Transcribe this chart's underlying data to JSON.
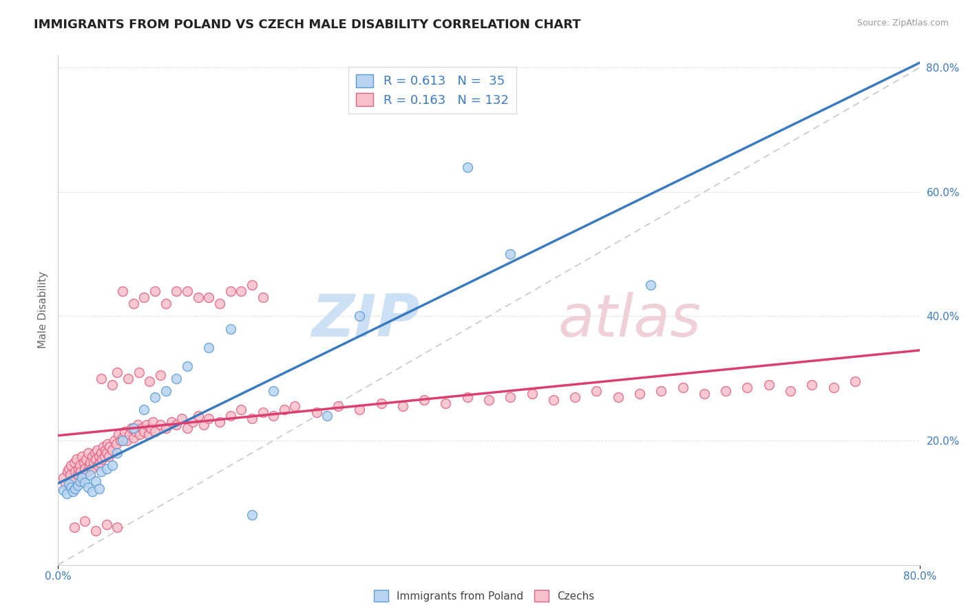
{
  "title": "IMMIGRANTS FROM POLAND VS CZECH MALE DISABILITY CORRELATION CHART",
  "source": "Source: ZipAtlas.com",
  "ylabel": "Male Disability",
  "xlim": [
    0.0,
    0.8
  ],
  "ylim": [
    0.0,
    0.82
  ],
  "poland_R": 0.613,
  "poland_N": 35,
  "czech_R": 0.163,
  "czech_N": 132,
  "poland_color": "#b8d4f0",
  "poland_edge_color": "#5b9bd5",
  "czech_color": "#f8c0cc",
  "czech_edge_color": "#e06080",
  "ref_line_color": "#c8c8c8",
  "poland_line_color": "#3a7abf",
  "czech_line_color": "#d94070",
  "legend_text_color": "#3a7abf",
  "watermark_color": "#ddeeff",
  "poland_scatter_x": [
    0.005,
    0.008,
    0.01,
    0.012,
    0.014,
    0.016,
    0.018,
    0.02,
    0.022,
    0.025,
    0.028,
    0.03,
    0.032,
    0.035,
    0.038,
    0.04,
    0.045,
    0.05,
    0.055,
    0.06,
    0.07,
    0.08,
    0.09,
    0.1,
    0.11,
    0.12,
    0.14,
    0.16,
    0.18,
    0.2,
    0.25,
    0.28,
    0.38,
    0.42,
    0.55
  ],
  "poland_scatter_y": [
    0.12,
    0.115,
    0.13,
    0.125,
    0.118,
    0.122,
    0.128,
    0.135,
    0.14,
    0.132,
    0.125,
    0.145,
    0.118,
    0.135,
    0.122,
    0.15,
    0.155,
    0.16,
    0.18,
    0.2,
    0.22,
    0.25,
    0.27,
    0.28,
    0.3,
    0.32,
    0.35,
    0.38,
    0.08,
    0.28,
    0.24,
    0.4,
    0.64,
    0.5,
    0.45
  ],
  "czech_scatter_x": [
    0.005,
    0.007,
    0.009,
    0.01,
    0.011,
    0.012,
    0.013,
    0.015,
    0.016,
    0.017,
    0.018,
    0.019,
    0.02,
    0.021,
    0.022,
    0.023,
    0.024,
    0.025,
    0.026,
    0.027,
    0.028,
    0.029,
    0.03,
    0.031,
    0.032,
    0.033,
    0.034,
    0.035,
    0.036,
    0.037,
    0.038,
    0.039,
    0.04,
    0.041,
    0.042,
    0.043,
    0.044,
    0.045,
    0.046,
    0.047,
    0.048,
    0.05,
    0.052,
    0.054,
    0.056,
    0.058,
    0.06,
    0.062,
    0.064,
    0.066,
    0.068,
    0.07,
    0.072,
    0.074,
    0.076,
    0.078,
    0.08,
    0.082,
    0.084,
    0.086,
    0.088,
    0.09,
    0.095,
    0.1,
    0.105,
    0.11,
    0.115,
    0.12,
    0.125,
    0.13,
    0.135,
    0.14,
    0.15,
    0.16,
    0.17,
    0.18,
    0.19,
    0.2,
    0.21,
    0.22,
    0.24,
    0.26,
    0.28,
    0.3,
    0.32,
    0.34,
    0.36,
    0.38,
    0.4,
    0.42,
    0.44,
    0.46,
    0.48,
    0.5,
    0.52,
    0.54,
    0.56,
    0.58,
    0.6,
    0.62,
    0.64,
    0.66,
    0.68,
    0.7,
    0.72,
    0.74,
    0.12,
    0.14,
    0.16,
    0.18,
    0.06,
    0.07,
    0.08,
    0.09,
    0.1,
    0.11,
    0.13,
    0.15,
    0.17,
    0.19,
    0.04,
    0.05,
    0.055,
    0.065,
    0.075,
    0.085,
    0.095,
    0.015,
    0.025,
    0.035,
    0.045,
    0.055
  ],
  "czech_scatter_y": [
    0.14,
    0.13,
    0.15,
    0.155,
    0.145,
    0.16,
    0.135,
    0.165,
    0.15,
    0.17,
    0.145,
    0.155,
    0.16,
    0.15,
    0.175,
    0.145,
    0.165,
    0.155,
    0.17,
    0.15,
    0.18,
    0.16,
    0.165,
    0.155,
    0.175,
    0.165,
    0.18,
    0.17,
    0.185,
    0.16,
    0.175,
    0.165,
    0.18,
    0.17,
    0.19,
    0.175,
    0.185,
    0.18,
    0.195,
    0.175,
    0.19,
    0.185,
    0.2,
    0.195,
    0.21,
    0.2,
    0.205,
    0.215,
    0.2,
    0.21,
    0.22,
    0.205,
    0.215,
    0.225,
    0.21,
    0.22,
    0.215,
    0.225,
    0.21,
    0.22,
    0.23,
    0.215,
    0.225,
    0.22,
    0.23,
    0.225,
    0.235,
    0.22,
    0.23,
    0.24,
    0.225,
    0.235,
    0.23,
    0.24,
    0.25,
    0.235,
    0.245,
    0.24,
    0.25,
    0.255,
    0.245,
    0.255,
    0.25,
    0.26,
    0.255,
    0.265,
    0.26,
    0.27,
    0.265,
    0.27,
    0.275,
    0.265,
    0.27,
    0.28,
    0.27,
    0.275,
    0.28,
    0.285,
    0.275,
    0.28,
    0.285,
    0.29,
    0.28,
    0.29,
    0.285,
    0.295,
    0.44,
    0.43,
    0.44,
    0.45,
    0.44,
    0.42,
    0.43,
    0.44,
    0.42,
    0.44,
    0.43,
    0.42,
    0.44,
    0.43,
    0.3,
    0.29,
    0.31,
    0.3,
    0.31,
    0.295,
    0.305,
    0.06,
    0.07,
    0.055,
    0.065,
    0.06
  ]
}
